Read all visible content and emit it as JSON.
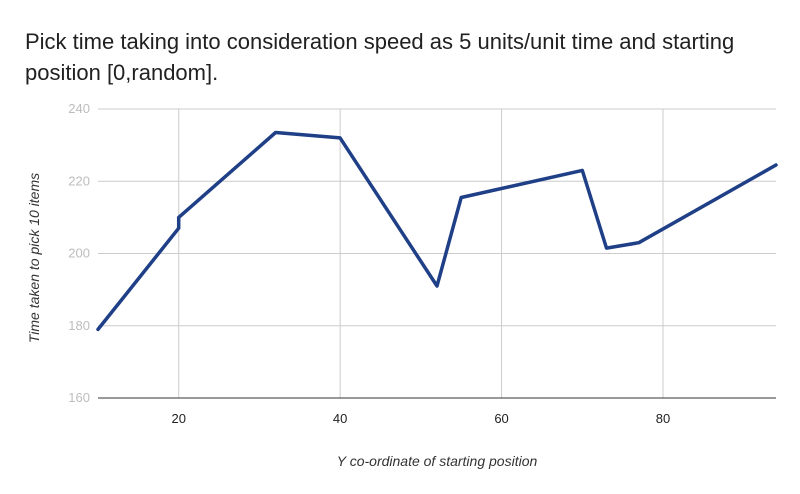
{
  "chart_data": {
    "type": "line",
    "title": "Pick time taking into consideration speed as 5 units/unit time and starting position [0,random].",
    "xlabel": "Y co-ordinate of starting position",
    "ylabel": "Time taken to pick 10 items",
    "xlim": [
      10,
      94
    ],
    "ylim": [
      160,
      240
    ],
    "x_ticks": [
      20,
      40,
      60,
      80
    ],
    "y_ticks": [
      160,
      180,
      200,
      220,
      240
    ],
    "grid": true,
    "legend": "none",
    "series": [
      {
        "color": "#1f3f87",
        "x": [
          10,
          20,
          20,
          32,
          40,
          52,
          55,
          70,
          73,
          77,
          94
        ],
        "y": [
          179,
          207,
          210,
          233.5,
          232,
          191,
          215.5,
          223,
          201.5,
          203,
          224.5
        ]
      }
    ]
  }
}
